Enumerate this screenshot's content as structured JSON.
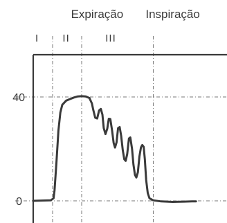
{
  "chart_data": {
    "type": "line",
    "title": "",
    "xlabel": "",
    "ylabel": "",
    "ylim": [
      0,
      56
    ],
    "xlim": [
      0,
      100
    ],
    "yticks": [
      {
        "value": 0,
        "label": "0"
      },
      {
        "value": 40,
        "label": "40"
      }
    ],
    "phase_labels": [
      {
        "text": "Expiração",
        "x": 33
      },
      {
        "text": "Inspiração",
        "x": 72
      }
    ],
    "phase_dividers": [
      10,
      25,
      62
    ],
    "phases": [
      {
        "label": "I",
        "x": 2
      },
      {
        "label": "II",
        "x": 17
      },
      {
        "label": "III",
        "x": 40
      }
    ],
    "grid": "dash-dot at phase boundaries and y-ticks",
    "series": [
      {
        "points": [
          [
            0,
            0
          ],
          [
            9,
            0.2
          ],
          [
            10.5,
            1
          ],
          [
            11,
            4
          ],
          [
            12,
            15
          ],
          [
            13,
            27
          ],
          [
            14,
            34
          ],
          [
            15,
            37
          ],
          [
            17,
            38.6
          ],
          [
            19,
            39.2
          ],
          [
            21,
            39.8
          ],
          [
            23,
            40.2
          ],
          [
            25,
            40.3
          ],
          [
            27,
            40.2
          ],
          [
            29,
            39.6
          ],
          [
            30.3,
            37.5
          ],
          [
            31,
            35
          ],
          [
            32,
            32
          ],
          [
            33,
            31.7
          ],
          [
            34,
            34.8
          ],
          [
            34.9,
            35.4
          ],
          [
            35.7,
            33.2
          ],
          [
            36.4,
            28
          ],
          [
            37.3,
            25.7
          ],
          [
            38.2,
            27.8
          ],
          [
            39,
            31.6
          ],
          [
            39.8,
            31.5
          ],
          [
            40.7,
            27
          ],
          [
            41.5,
            22.3
          ],
          [
            42.2,
            20.5
          ],
          [
            43,
            22.5
          ],
          [
            43.8,
            28
          ],
          [
            44.6,
            28.4
          ],
          [
            45.4,
            25
          ],
          [
            46.2,
            19.5
          ],
          [
            47,
            16
          ],
          [
            47.7,
            15.4
          ],
          [
            48.5,
            18
          ],
          [
            49.4,
            24
          ],
          [
            50.1,
            24.4
          ],
          [
            51,
            20
          ],
          [
            51.7,
            14
          ],
          [
            52.5,
            10
          ],
          [
            53.2,
            9
          ],
          [
            54,
            11
          ],
          [
            54.8,
            17
          ],
          [
            55.6,
            20.6
          ],
          [
            56.3,
            21.5
          ],
          [
            57,
            20.8
          ],
          [
            57.6,
            16
          ],
          [
            58.3,
            8
          ],
          [
            59.1,
            3
          ],
          [
            60,
            1
          ],
          [
            62,
            0.2
          ],
          [
            66,
            -0.2
          ],
          [
            72,
            -0.4
          ],
          [
            78,
            -0.3
          ],
          [
            82,
            -0.2
          ],
          [
            84,
            -0.2
          ]
        ]
      }
    ]
  }
}
